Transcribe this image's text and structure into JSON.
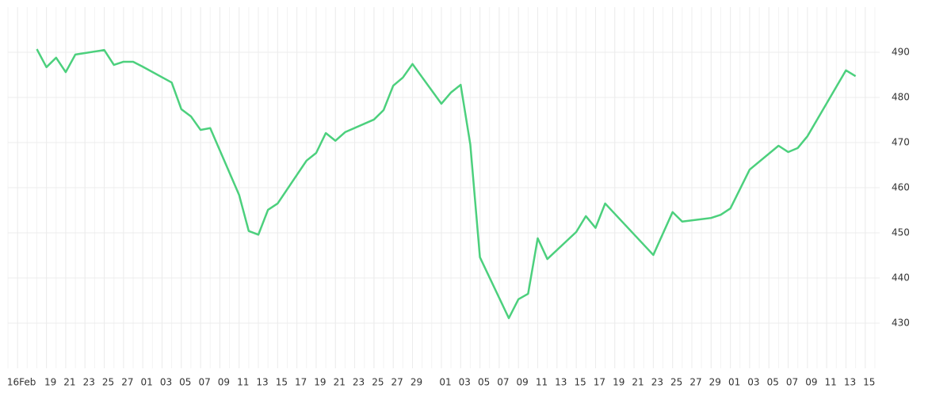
{
  "chart_data": {
    "type": "line",
    "x": [
      2,
      3,
      4,
      5,
      6,
      9,
      10,
      11,
      12,
      13,
      16,
      17,
      18,
      19,
      20,
      23,
      24,
      25,
      26,
      27,
      30,
      31,
      32,
      33,
      34,
      37,
      38,
      39,
      40,
      41,
      44,
      45,
      46,
      47,
      48,
      51,
      52,
      53,
      54,
      55,
      58,
      59,
      60,
      61,
      66,
      68,
      69,
      72,
      73,
      74,
      76,
      79,
      80,
      81,
      82,
      86,
      87
    ],
    "series": [
      {
        "color": "#4cd07d",
        "values": [
          490.7,
          486.7,
          488.8,
          485.6,
          489.5,
          490.5,
          487.2,
          487.9,
          487.9,
          486.8,
          483.3,
          477.4,
          475.8,
          472.8,
          473.2,
          458.4,
          450.4,
          449.6,
          455.1,
          456.5,
          466,
          467.7,
          472.1,
          470.4,
          472.3,
          475.1,
          477.2,
          482.6,
          484.4,
          487.4,
          478.6,
          481.1,
          482.8,
          469.6,
          444.6,
          431.1,
          435.3,
          436.5,
          448.8,
          444.2,
          450.2,
          453.7,
          451.1,
          456.5,
          445.1,
          454.6,
          452.5,
          453.3,
          454,
          455.4,
          464,
          469.3,
          467.9,
          468.8,
          471.4,
          486,
          484.7
        ]
      }
    ],
    "xlim": [
      -1,
      89.5
    ],
    "xticks": [
      {
        "value": 0,
        "label": "16Feb"
      },
      {
        "value": 3,
        "label": "19"
      },
      {
        "value": 5,
        "label": "21"
      },
      {
        "value": 7,
        "label": "23"
      },
      {
        "value": 9,
        "label": "25"
      },
      {
        "value": 11,
        "label": "27"
      },
      {
        "value": 13,
        "label": "01"
      },
      {
        "value": 15,
        "label": "03"
      },
      {
        "value": 17,
        "label": "05"
      },
      {
        "value": 19,
        "label": "07"
      },
      {
        "value": 21,
        "label": "09"
      },
      {
        "value": 23,
        "label": "11"
      },
      {
        "value": 25,
        "label": "13"
      },
      {
        "value": 27,
        "label": "15"
      },
      {
        "value": 29,
        "label": "17"
      },
      {
        "value": 31,
        "label": "19"
      },
      {
        "value": 33,
        "label": "21"
      },
      {
        "value": 35,
        "label": "23"
      },
      {
        "value": 37,
        "label": "25"
      },
      {
        "value": 39,
        "label": "27"
      },
      {
        "value": 41,
        "label": "29"
      },
      {
        "value": 44,
        "label": "01"
      },
      {
        "value": 46,
        "label": "03"
      },
      {
        "value": 48,
        "label": "05"
      },
      {
        "value": 50,
        "label": "07"
      },
      {
        "value": 52,
        "label": "09"
      },
      {
        "value": 54,
        "label": "11"
      },
      {
        "value": 56,
        "label": "13"
      },
      {
        "value": 58,
        "label": "15"
      },
      {
        "value": 60,
        "label": "17"
      },
      {
        "value": 62,
        "label": "19"
      },
      {
        "value": 64,
        "label": "21"
      },
      {
        "value": 66,
        "label": "23"
      },
      {
        "value": 68,
        "label": "25"
      },
      {
        "value": 70,
        "label": "27"
      },
      {
        "value": 72,
        "label": "29"
      },
      {
        "value": 74,
        "label": "01"
      },
      {
        "value": 76,
        "label": "03"
      },
      {
        "value": 78,
        "label": "05"
      },
      {
        "value": 80,
        "label": "07"
      },
      {
        "value": 82,
        "label": "09"
      },
      {
        "value": 84,
        "label": "11"
      },
      {
        "value": 86,
        "label": "13"
      },
      {
        "value": 88,
        "label": "15"
      }
    ],
    "ylim": [
      420,
      500
    ],
    "yticks": [
      430,
      440,
      450,
      460,
      470,
      480,
      490
    ],
    "grid": true
  }
}
